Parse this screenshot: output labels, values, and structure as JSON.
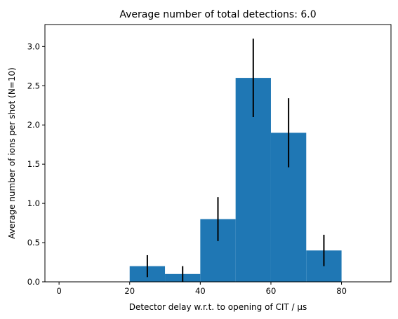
{
  "chart_data": {
    "type": "bar",
    "title": "Average number of total detections: 6.0",
    "xlabel": "Detector delay w.r.t. to opening of CIT / μs",
    "ylabel": "Average number of ions per shot (N=10)",
    "xlim": [
      -4,
      94
    ],
    "ylim": [
      0,
      3.28
    ],
    "xticks": [
      0,
      20,
      40,
      60,
      80
    ],
    "yticks": [
      0.0,
      0.5,
      1.0,
      1.5,
      2.0,
      2.5,
      3.0
    ],
    "xtick_labels": [
      "0",
      "20",
      "40",
      "60",
      "80"
    ],
    "ytick_labels": [
      "0.0",
      "0.5",
      "1.0",
      "1.5",
      "2.0",
      "2.5",
      "3.0"
    ],
    "grid": false,
    "bar_color": "#1f77b4",
    "errorbar_color": "#000000",
    "bins": [
      {
        "start": 20,
        "end": 30,
        "value": 0.2,
        "err": 0.14
      },
      {
        "start": 30,
        "end": 40,
        "value": 0.1,
        "err": 0.1
      },
      {
        "start": 40,
        "end": 50,
        "value": 0.8,
        "err": 0.28
      },
      {
        "start": 50,
        "end": 60,
        "value": 2.6,
        "err": 0.5
      },
      {
        "start": 60,
        "end": 70,
        "value": 1.9,
        "err": 0.44
      },
      {
        "start": 70,
        "end": 80,
        "value": 0.4,
        "err": 0.2
      }
    ]
  }
}
